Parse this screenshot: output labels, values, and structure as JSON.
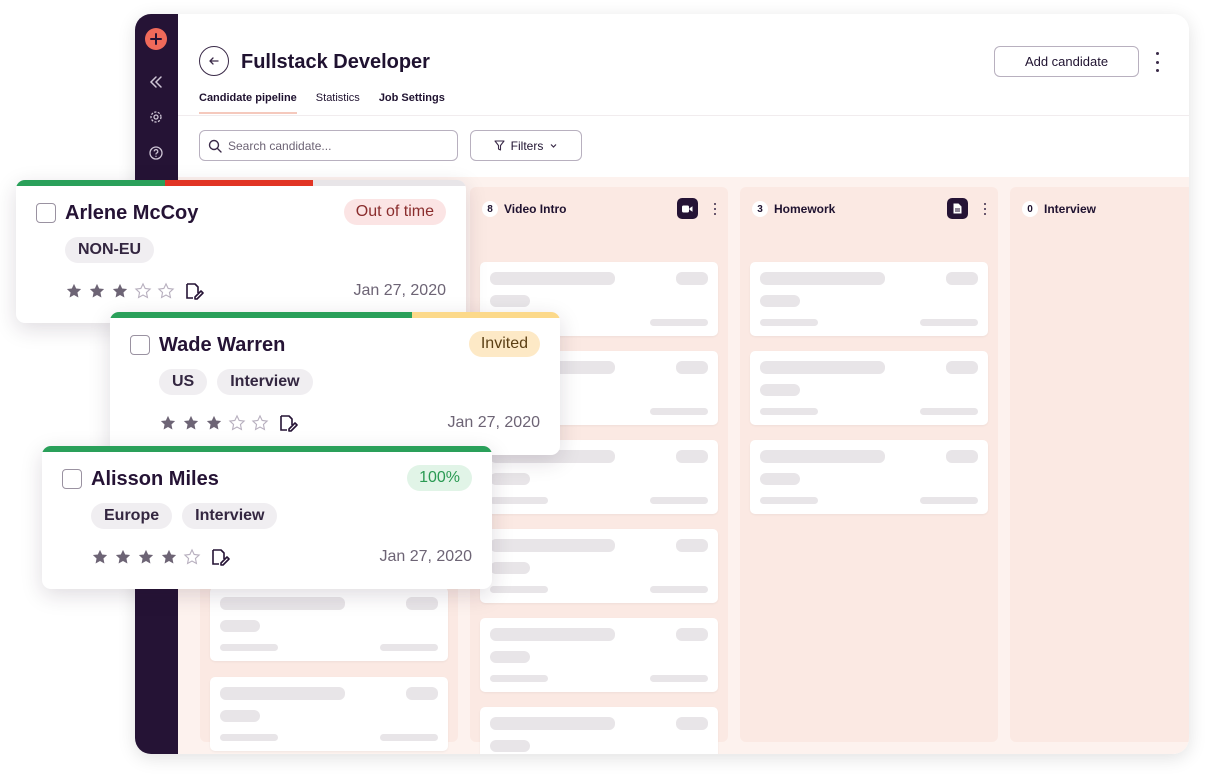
{
  "page": {
    "title": "Fullstack Developer"
  },
  "header": {
    "add_candidate_label": "Add candidate"
  },
  "tabs": [
    {
      "label": "Candidate pipeline",
      "active": true
    },
    {
      "label": "Statistics",
      "active": false
    },
    {
      "label": "Job Settings",
      "active": false
    }
  ],
  "search": {
    "placeholder": "Search candidate..."
  },
  "filters": {
    "label": "Filters"
  },
  "columns": [
    {
      "count": "8",
      "label": "Video Intro",
      "icon": "video-icon"
    },
    {
      "count": "3",
      "label": "Homework",
      "icon": "document-icon"
    },
    {
      "count": "0",
      "label": "Interview"
    }
  ],
  "cards": [
    {
      "name": "Arlene McCoy",
      "status": "Out of time",
      "status_bg": "#fbe4e4",
      "status_color": "#8a2d2d",
      "tags": [
        "NON-EU"
      ],
      "rating": 3,
      "date": "Jan 27, 2020",
      "bar_colors": [
        "#2aa05a",
        "#e13424",
        "#e8e5e8"
      ],
      "bar_segments": [
        0.33,
        0.33,
        0.34
      ]
    },
    {
      "name": "Wade Warren",
      "status": "Invited",
      "status_bg": "#fde9c6",
      "status_color": "#5b3f14",
      "tags": [
        "US",
        "Interview"
      ],
      "rating": 3,
      "date": "Jan 27, 2020",
      "bar_colors": [
        "#2aa05a",
        "#fcd98a"
      ],
      "bar_segments": [
        0.67,
        0.33
      ]
    },
    {
      "name": "Alisson Miles",
      "status": "100%",
      "status_bg": "#e1f4e7",
      "status_color": "#2a9a53",
      "tags": [
        "Europe",
        "Interview"
      ],
      "rating": 4,
      "date": "Jan 27, 2020",
      "bar_colors": [
        "#2aa05a"
      ],
      "bar_segments": [
        1.0
      ]
    }
  ],
  "colors": {
    "sidebar": "#251335",
    "accent": "#f06a5a",
    "board_bg": "#fdf2ee",
    "star_filled": "#6d6475"
  }
}
